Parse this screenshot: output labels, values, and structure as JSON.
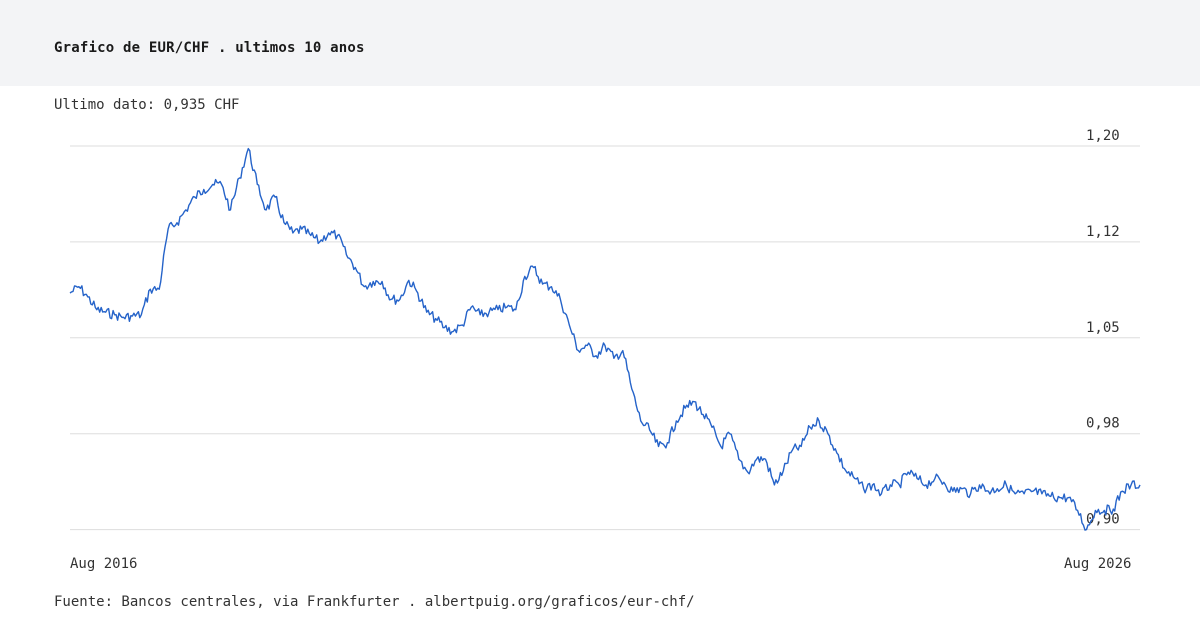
{
  "header": {
    "title": "Grafico de EUR/CHF . ultimos 10 anos"
  },
  "summary": {
    "last_value": "Ultimo dato: 0,935 CHF"
  },
  "footer": {
    "source": "Fuente: Bancos centrales, via Frankfurter . albertpuig.org/graficos/eur-chf/"
  },
  "colors": {
    "line": "#2563c9",
    "grid": "#dddddd",
    "header_bg": "#f3f4f6"
  },
  "chart_data": {
    "type": "line",
    "title": "Grafico de EUR/CHF . ultimos 10 anos",
    "xlabel": "",
    "ylabel": "",
    "grid": true,
    "y_axis_side": "right",
    "ylim": [
      0.895,
      1.2
    ],
    "y_ticks": [
      {
        "value": 1.2,
        "label": "1,20"
      },
      {
        "value": 1.125,
        "label": "1,12"
      },
      {
        "value": 1.05,
        "label": "1,05"
      },
      {
        "value": 0.975,
        "label": "0,98"
      },
      {
        "value": 0.9,
        "label": "0,90"
      }
    ],
    "x_ticks": [
      {
        "value": "2016-08",
        "label": "Aug 2016"
      },
      {
        "value": "2026-08",
        "label": "Aug 2026"
      }
    ],
    "xlim": [
      "2016-08",
      "2026-08"
    ],
    "series": [
      {
        "x": [
          "2016-08",
          "2016-09",
          "2016-10",
          "2016-11",
          "2016-12",
          "2017-01",
          "2017-02",
          "2017-03",
          "2017-04",
          "2017-05",
          "2017-06",
          "2017-07",
          "2017-08",
          "2017-09",
          "2017-10",
          "2017-11",
          "2017-12",
          "2018-01",
          "2018-02",
          "2018-03",
          "2018-04",
          "2018-05",
          "2018-06",
          "2018-07",
          "2018-08",
          "2018-09",
          "2018-10",
          "2018-11",
          "2018-12",
          "2019-01",
          "2019-02",
          "2019-03",
          "2019-04",
          "2019-05",
          "2019-06",
          "2019-07",
          "2019-08",
          "2019-09",
          "2019-10",
          "2019-11",
          "2019-12",
          "2020-01",
          "2020-02",
          "2020-03",
          "2020-04",
          "2020-05",
          "2020-06",
          "2020-07",
          "2020-08",
          "2020-09",
          "2020-10",
          "2020-11",
          "2020-12",
          "2021-01",
          "2021-02",
          "2021-03",
          "2021-04",
          "2021-05",
          "2021-06",
          "2021-07",
          "2021-08",
          "2021-09",
          "2021-10",
          "2021-11",
          "2021-12",
          "2022-01",
          "2022-02",
          "2022-03",
          "2022-04",
          "2022-05",
          "2022-06",
          "2022-07",
          "2022-08",
          "2022-09",
          "2022-10",
          "2022-11",
          "2022-12",
          "2023-01",
          "2023-02",
          "2023-03",
          "2023-04",
          "2023-05",
          "2023-06",
          "2023-07",
          "2023-08",
          "2023-09",
          "2023-10",
          "2023-11",
          "2023-12",
          "2024-01",
          "2024-02",
          "2024-03",
          "2024-04",
          "2024-05",
          "2024-06",
          "2024-07",
          "2024-08",
          "2024-09",
          "2024-10",
          "2024-11",
          "2024-12",
          "2025-01",
          "2025-02",
          "2025-03",
          "2025-04",
          "2025-05",
          "2025-06",
          "2025-07",
          "2025-08",
          "2025-09",
          "2025-10",
          "2025-11",
          "2025-12",
          "2026-01",
          "2026-02",
          "2026-03",
          "2026-04",
          "2026-05",
          "2026-06",
          "2026-07",
          "2026-08"
        ],
        "values": [
          1.085,
          1.09,
          1.082,
          1.072,
          1.07,
          1.068,
          1.066,
          1.067,
          1.068,
          1.088,
          1.088,
          1.135,
          1.14,
          1.15,
          1.16,
          1.166,
          1.17,
          1.17,
          1.15,
          1.175,
          1.198,
          1.17,
          1.15,
          1.16,
          1.14,
          1.132,
          1.135,
          1.13,
          1.125,
          1.132,
          1.13,
          1.115,
          1.105,
          1.09,
          1.094,
          1.094,
          1.08,
          1.08,
          1.095,
          1.085,
          1.07,
          1.065,
          1.058,
          1.055,
          1.06,
          1.074,
          1.068,
          1.07,
          1.072,
          1.074,
          1.072,
          1.098,
          1.105,
          1.092,
          1.09,
          1.08,
          1.06,
          1.04,
          1.044,
          1.036,
          1.044,
          1.034,
          1.04,
          1.01,
          0.985,
          0.978,
          0.965,
          0.968,
          0.985,
          0.995,
          1.0,
          0.99,
          0.98,
          0.965,
          0.975,
          0.955,
          0.945,
          0.955,
          0.955,
          0.935,
          0.946,
          0.962,
          0.965,
          0.98,
          0.985,
          0.975,
          0.96,
          0.946,
          0.94,
          0.932,
          0.935,
          0.928,
          0.935,
          0.935,
          0.945,
          0.94,
          0.935,
          0.94,
          0.937,
          0.93,
          0.932,
          0.928,
          0.935,
          0.93,
          0.932,
          0.935,
          0.928,
          0.928,
          0.93,
          0.928,
          0.926,
          0.925,
          0.925,
          0.915,
          0.9,
          0.915,
          0.915,
          0.916,
          0.93,
          0.935,
          0.935
        ]
      }
    ]
  }
}
